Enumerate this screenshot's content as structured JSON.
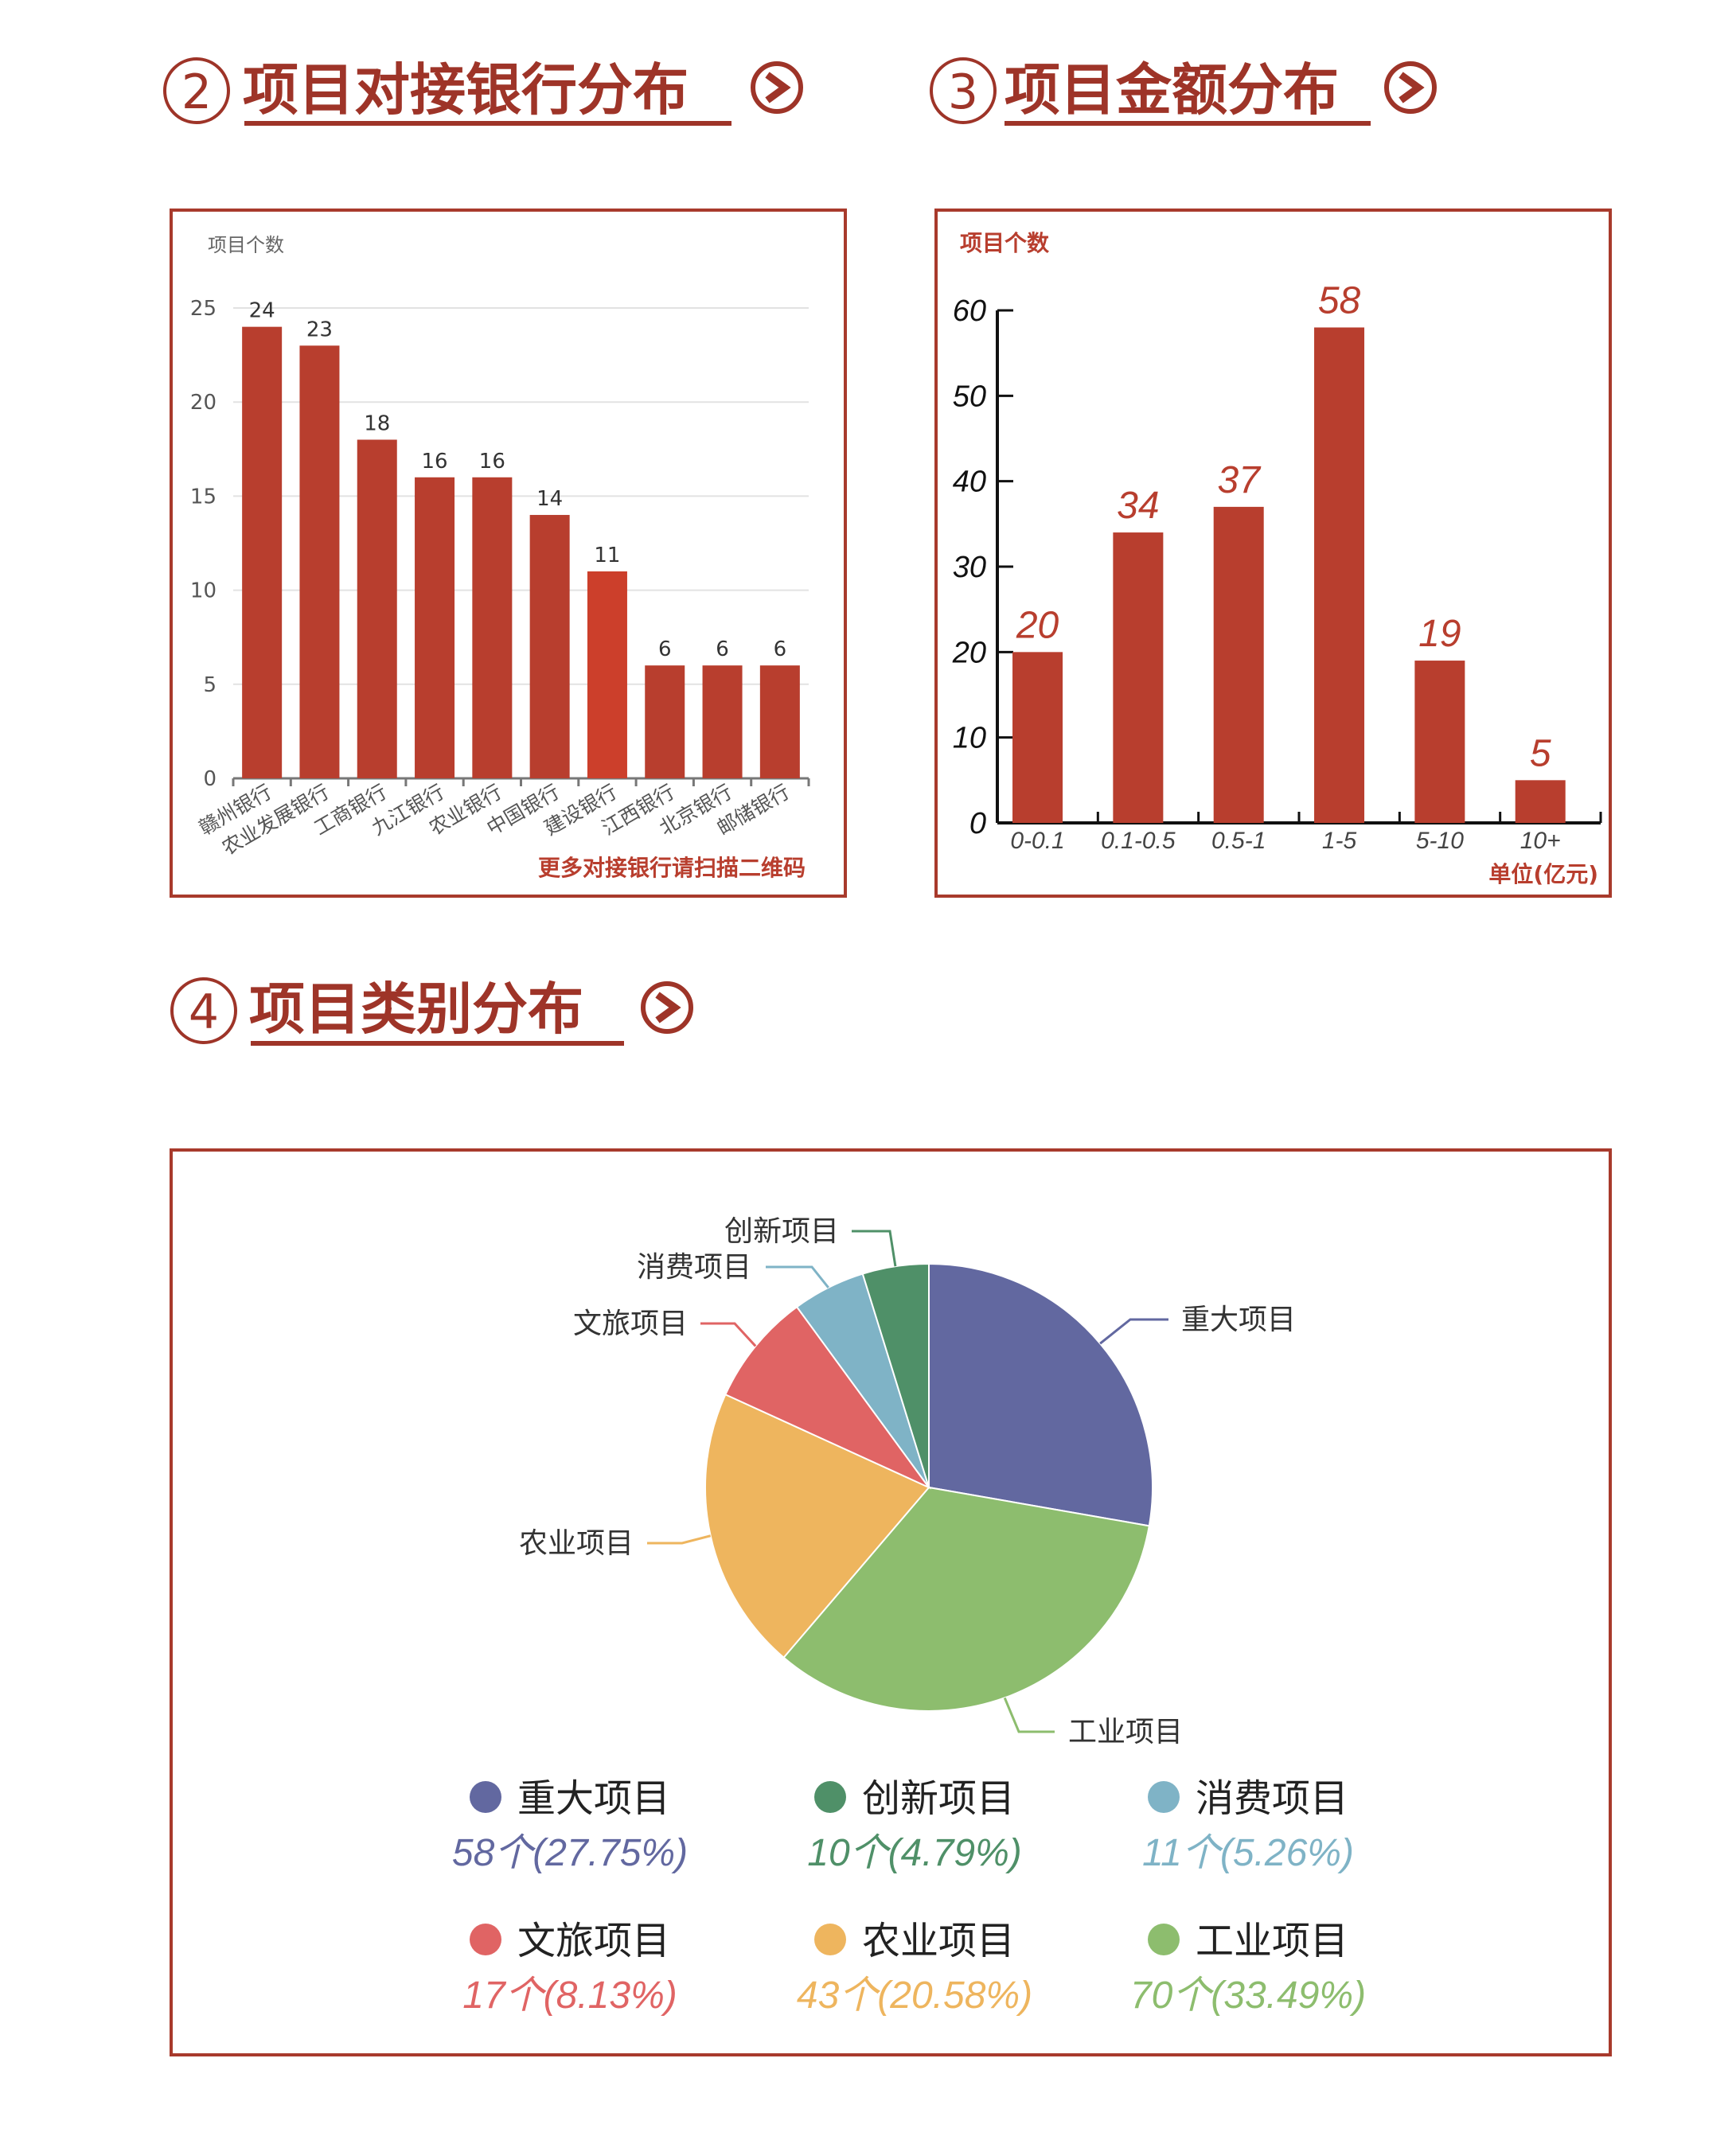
{
  "sections": {
    "banks": {
      "number": "2",
      "title": "项目对接银行分布"
    },
    "amounts": {
      "number": "3",
      "title": "项目金额分布"
    },
    "categories": {
      "number": "4",
      "title": "项目类别分布"
    }
  },
  "colors": {
    "header": "#9e3428",
    "bar": "#b83e2e",
    "bar_highlight": "#cc3f2b",
    "frame": "#a83a2c"
  },
  "icons": {
    "section_arrow": "circle-chevron-right-icon"
  },
  "chart_data": [
    {
      "type": "bar",
      "ylabel": "项目个数",
      "ylim": [
        0,
        25
      ],
      "yticks": [
        "0",
        "5",
        "10",
        "15",
        "20",
        "25"
      ],
      "grid": true,
      "categories": [
        "赣州银行",
        "农业发展银行",
        "工商银行",
        "九江银行",
        "农业银行",
        "中国银行",
        "建设银行",
        "江西银行",
        "北京银行",
        "邮储银行"
      ],
      "values": [
        24,
        23,
        18,
        16,
        16,
        14,
        11,
        6,
        6,
        6
      ],
      "highlight_index": 6,
      "footnote": "更多对接银行请扫描二维码"
    },
    {
      "type": "bar",
      "ylabel": "项目个数",
      "xlabel": "单位(亿元)",
      "ylim": [
        0,
        60
      ],
      "yticks": [
        "0",
        "10",
        "20",
        "30",
        "40",
        "50",
        "60"
      ],
      "grid": false,
      "categories": [
        "0-0.1",
        "0.1-0.5",
        "0.5-1",
        "1-5",
        "5-10",
        "10+"
      ],
      "values": [
        20,
        34,
        37,
        58,
        19,
        5
      ]
    },
    {
      "type": "pie",
      "start": "top",
      "direction": "clockwise",
      "legend_placement": "bottom",
      "slices": [
        {
          "name": "重大项目",
          "value": 58,
          "percent": 27.75,
          "label": "58个(27.75%)",
          "color": "#6268a0"
        },
        {
          "name": "工业项目",
          "value": 70,
          "percent": 33.49,
          "label": "70个(33.49%)",
          "color": "#8dbd6e"
        },
        {
          "name": "农业项目",
          "value": 43,
          "percent": 20.58,
          "label": "43个(20.58%)",
          "color": "#eeb55e"
        },
        {
          "name": "文旅项目",
          "value": 17,
          "percent": 8.13,
          "label": "17个(8.13%)",
          "color": "#e06464"
        },
        {
          "name": "消费项目",
          "value": 11,
          "percent": 5.26,
          "label": "11个(5.26%)",
          "color": "#7fb3c6"
        },
        {
          "name": "创新项目",
          "value": 10,
          "percent": 4.79,
          "label": "10个(4.79%)",
          "color": "#4f9068"
        }
      ],
      "legend_order": [
        "重大项目",
        "创新项目",
        "消费项目",
        "文旅项目",
        "农业项目",
        "工业项目"
      ]
    }
  ]
}
